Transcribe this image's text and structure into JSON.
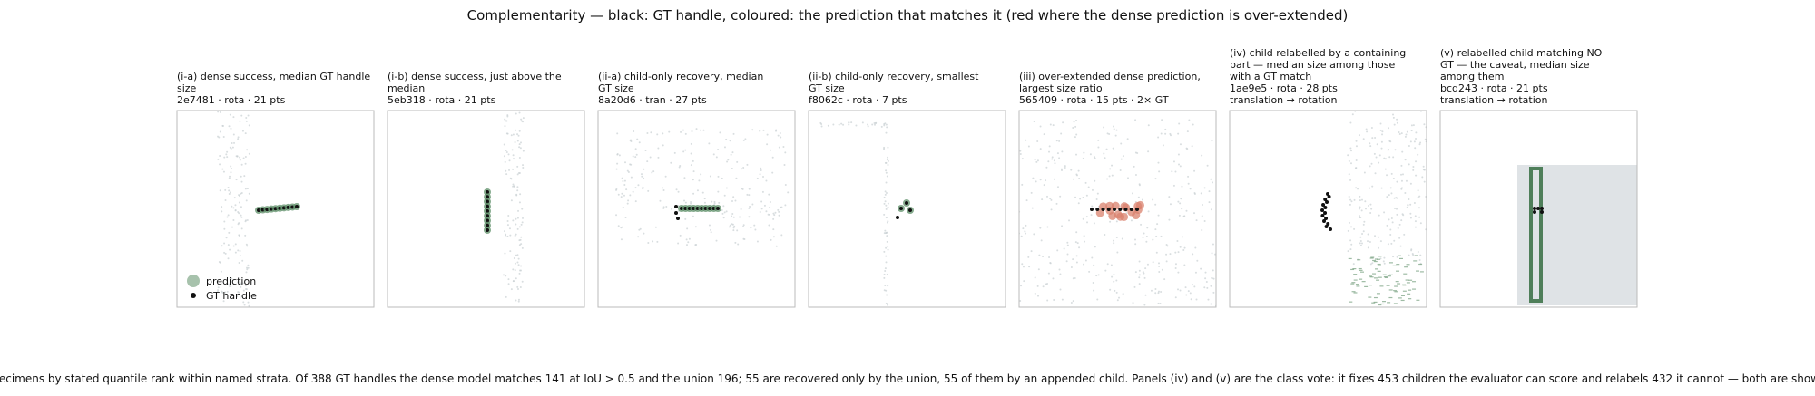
{
  "title": "Complementarity — black: GT handle, coloured: the prediction that matches it (red where the dense prediction is over-extended)",
  "panels": [
    {
      "lines": [
        "(i-a) dense success, median GT handle",
        "size",
        "2e7481 · rota · 21 pts"
      ]
    },
    {
      "lines": [
        "(i-b) dense success, just above the",
        "median",
        "5eb318 · rota · 21 pts"
      ]
    },
    {
      "lines": [
        "(ii-a) child-only recovery, median",
        "GT size",
        "8a20d6 · tran · 27 pts"
      ]
    },
    {
      "lines": [
        "(ii-b) child-only recovery, smallest",
        "GT size",
        "f8062c · rota · 7 pts"
      ]
    },
    {
      "lines": [
        "(iii) over-extended dense prediction,",
        "largest size ratio",
        "565409 · rota · 15 pts · 2× GT"
      ]
    },
    {
      "lines": [
        "(iv) child relabelled by a containing",
        "part — median size among those",
        "with a GT match",
        "1ae9e5 · rota · 28 pts",
        "translation → rotation"
      ]
    },
    {
      "lines": [
        "(v) relabelled child matching NO",
        "GT — the caveat, median size",
        "among them",
        "bcd243 · rota · 21 pts",
        "translation → rotation"
      ]
    }
  ],
  "legend": {
    "items": [
      "prediction",
      "GT handle"
    ]
  },
  "caption": "Specimens by stated quantile rank within named strata. Of 388 GT handles the dense model matches 141 at IoU > 0.5 and the union 196; 55 are recovered only by the union, 55 of them by an appended child. Panels (iv) and (v) are the class vote: it fixes 453 children the evaluator can score and relabels 432 it cannot — both are shown."
}
